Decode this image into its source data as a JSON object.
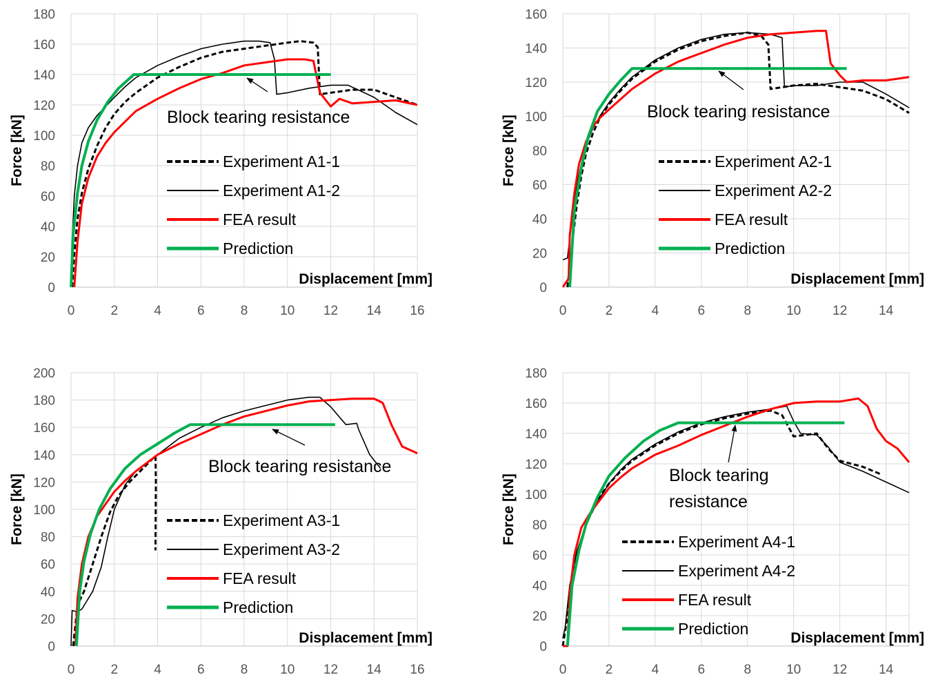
{
  "chart_data": [
    {
      "type": "line",
      "xlabel": "Displacement [mm]",
      "ylabel": "Force  [kN]",
      "xlim": [
        0,
        16
      ],
      "ylim": [
        0,
        180
      ],
      "xticks": [
        0,
        2,
        4,
        6,
        8,
        10,
        12,
        14,
        16
      ],
      "yticks": [
        0,
        20,
        40,
        60,
        80,
        100,
        120,
        140,
        160,
        180
      ],
      "annotation": "Block tearing resistance",
      "series": [
        {
          "name": "Experiment A1-1",
          "style": "dashed",
          "color": "#000000",
          "x": [
            0.05,
            0.15,
            0.3,
            0.5,
            0.8,
            1.2,
            1.6,
            2.0,
            2.5,
            3.0,
            4.0,
            5.0,
            6.0,
            7.0,
            8.0,
            9.0,
            10.0,
            10.6,
            11.2,
            11.4,
            11.5,
            12.0,
            13.0,
            14.0,
            15.0,
            16.0
          ],
          "y": [
            0,
            22,
            45,
            62,
            78,
            93,
            105,
            114,
            122,
            128,
            138,
            145,
            151,
            155,
            157,
            159,
            161,
            162,
            161,
            158,
            127,
            128,
            130,
            130,
            125,
            120
          ]
        },
        {
          "name": "Experiment A1-2",
          "style": "solid",
          "color": "#000000",
          "x": [
            0.0,
            0.05,
            0.15,
            0.3,
            0.5,
            0.8,
            1.2,
            1.6,
            2.0,
            2.5,
            3.0,
            4.0,
            5.0,
            6.0,
            7.0,
            8.0,
            8.7,
            9.2,
            9.4,
            9.5,
            10.0,
            11.0,
            12.0,
            12.8,
            14.0,
            15.0,
            16.0
          ],
          "y": [
            0,
            30,
            60,
            80,
            95,
            105,
            113,
            119,
            125,
            132,
            138,
            146,
            152,
            157,
            160,
            162,
            162,
            161,
            150,
            127,
            128,
            131,
            133,
            133,
            125,
            115,
            107
          ]
        },
        {
          "name": "FEA result",
          "style": "solid",
          "color": "#ff0000",
          "x": [
            0.15,
            0.3,
            0.5,
            0.8,
            1.2,
            1.6,
            2.0,
            2.5,
            3.0,
            4.0,
            5.0,
            6.0,
            7.0,
            8.0,
            9.0,
            10.0,
            10.8,
            11.2,
            11.5,
            12.0,
            12.4,
            13.0,
            14.0,
            15.0,
            16.0
          ],
          "y": [
            0,
            30,
            55,
            72,
            86,
            95,
            102,
            109,
            116,
            124,
            131,
            137,
            141,
            146,
            148,
            150,
            150,
            149,
            128,
            119,
            124,
            121,
            122,
            123,
            120
          ]
        },
        {
          "name": "Prediction",
          "style": "solid",
          "color": "#00b050",
          "x": [
            0.0,
            0.1,
            0.3,
            0.5,
            0.8,
            1.2,
            1.7,
            2.2,
            2.9,
            12.0
          ],
          "y": [
            0,
            35,
            62,
            80,
            96,
            110,
            122,
            131,
            140,
            140
          ]
        }
      ]
    },
    {
      "type": "line",
      "xlabel": "Displacement [mm]",
      "ylabel": "Force  [kN]",
      "xlim": [
        0,
        15
      ],
      "ylim": [
        0,
        160
      ],
      "xticks": [
        0,
        2,
        4,
        6,
        8,
        10,
        12,
        14
      ],
      "yticks": [
        0,
        20,
        40,
        60,
        80,
        100,
        120,
        140,
        160
      ],
      "annotation": "Block tearing resistance",
      "series": [
        {
          "name": "Experiment A2-1",
          "style": "dashed",
          "color": "#000000",
          "x": [
            0.2,
            0.4,
            0.6,
            0.8,
            1.0,
            1.3,
            1.6,
            2.0,
            2.5,
            3.0,
            4.0,
            5.0,
            6.0,
            7.0,
            8.0,
            8.6,
            8.9,
            9.0,
            10.0,
            11.0,
            12.0,
            13.0,
            14.0,
            15.0
          ],
          "y": [
            0,
            25,
            48,
            65,
            78,
            90,
            99,
            107,
            115,
            122,
            132,
            139,
            144,
            147,
            149,
            147,
            142,
            116,
            118,
            119,
            117,
            115,
            110,
            102
          ]
        },
        {
          "name": "Experiment A2-2",
          "style": "solid",
          "color": "#000000",
          "x": [
            0.0,
            0.2,
            0.4,
            0.6,
            0.8,
            1.0,
            1.3,
            1.6,
            2.0,
            2.5,
            3.0,
            4.0,
            5.0,
            6.0,
            7.0,
            8.0,
            9.0,
            9.5,
            9.6,
            10.0,
            11.0,
            12.0,
            13.0,
            14.0,
            15.0
          ],
          "y": [
            16,
            17,
            40,
            60,
            72,
            83,
            93,
            100,
            108,
            116,
            123,
            133,
            140,
            145,
            148,
            149,
            148,
            146,
            117,
            118,
            118,
            120,
            120,
            113,
            105
          ]
        },
        {
          "name": "FEA result",
          "style": "solid",
          "color": "#ff0000",
          "x": [
            0.0,
            0.25,
            0.3,
            0.5,
            0.7,
            1.0,
            1.3,
            1.6,
            2.0,
            2.5,
            3.0,
            4.0,
            5.0,
            6.0,
            7.0,
            8.0,
            9.0,
            10.0,
            11.0,
            11.4,
            11.6,
            12.0,
            12.3,
            13.0,
            14.0,
            15.0
          ],
          "y": [
            0,
            5,
            30,
            55,
            72,
            85,
            94,
            99,
            104,
            110,
            116,
            125,
            132,
            137,
            142,
            146,
            148,
            149,
            150,
            150,
            131,
            124,
            120,
            121,
            121,
            123
          ]
        },
        {
          "name": "Prediction",
          "style": "solid",
          "color": "#00b050",
          "x": [
            0.3,
            0.5,
            0.8,
            1.1,
            1.5,
            2.0,
            2.5,
            3.0,
            12.3
          ],
          "y": [
            0,
            45,
            70,
            88,
            103,
            113,
            121,
            128,
            128
          ]
        }
      ]
    },
    {
      "type": "line",
      "xlabel": "Displacement [mm]",
      "ylabel": "Force  [kN]",
      "xlim": [
        0,
        16
      ],
      "ylim": [
        0,
        200
      ],
      "xticks": [
        0,
        2,
        4,
        6,
        8,
        10,
        12,
        14,
        16
      ],
      "yticks": [
        0,
        20,
        40,
        60,
        80,
        100,
        120,
        140,
        160,
        180,
        200
      ],
      "annotation": "Block tearing resistance",
      "series": [
        {
          "name": "Experiment A3-1",
          "style": "dashed",
          "color": "#000000",
          "x": [
            0.1,
            0.3,
            0.6,
            1.0,
            1.4,
            1.8,
            2.2,
            2.7,
            3.2,
            3.7,
            3.9,
            3.92,
            3.9
          ],
          "y": [
            0,
            30,
            40,
            60,
            80,
            98,
            110,
            120,
            128,
            136,
            139,
            120,
            70
          ]
        },
        {
          "name": "Experiment A3-2",
          "style": "solid",
          "color": "#000000",
          "x": [
            0.0,
            0.05,
            0.3,
            0.5,
            1.0,
            1.4,
            1.7,
            2.0,
            2.5,
            3.0,
            4.0,
            5.0,
            6.0,
            7.0,
            8.0,
            9.0,
            10.0,
            11.0,
            11.5,
            12.0,
            12.7,
            13.2,
            13.3,
            13.8,
            14.3
          ],
          "y": [
            0,
            26,
            25,
            27,
            40,
            58,
            80,
            100,
            118,
            128,
            140,
            152,
            160,
            167,
            172,
            176,
            180,
            182,
            182,
            175,
            162,
            163,
            158,
            140,
            130
          ]
        },
        {
          "name": "FEA result",
          "style": "solid",
          "color": "#ff0000",
          "x": [
            0.2,
            0.3,
            0.5,
            0.8,
            1.2,
            1.6,
            2.0,
            2.5,
            3.0,
            4.0,
            5.0,
            6.0,
            7.0,
            8.0,
            9.0,
            10.0,
            11.0,
            12.0,
            13.0,
            14.0,
            14.4,
            14.8,
            15.3,
            16.0
          ],
          "y": [
            0,
            35,
            60,
            80,
            95,
            104,
            113,
            121,
            128,
            140,
            148,
            155,
            162,
            168,
            172,
            176,
            179,
            180,
            181,
            181,
            178,
            162,
            146,
            141
          ]
        },
        {
          "name": "Prediction",
          "style": "solid",
          "color": "#00b050",
          "x": [
            0.25,
            0.4,
            0.6,
            0.9,
            1.3,
            1.8,
            2.5,
            3.2,
            4.0,
            4.8,
            5.5,
            12.2
          ],
          "y": [
            0,
            40,
            62,
            82,
            100,
            115,
            130,
            140,
            148,
            156,
            162,
            162
          ]
        }
      ]
    },
    {
      "type": "line",
      "xlabel": "Displacement [mm]",
      "ylabel": "Force  [kN]",
      "xlim": [
        0,
        15
      ],
      "ylim": [
        0,
        180
      ],
      "xticks": [
        0,
        2,
        4,
        6,
        8,
        10,
        12,
        14
      ],
      "yticks": [
        0,
        20,
        40,
        60,
        80,
        100,
        120,
        140,
        160,
        180
      ],
      "annotation_lines": [
        "Block tearing",
        "resistance"
      ],
      "series": [
        {
          "name": "Experiment A4-1",
          "style": "dashed",
          "color": "#000000",
          "x": [
            0.0,
            0.2,
            0.4,
            0.7,
            1.0,
            1.5,
            2.0,
            2.5,
            3.0,
            4.0,
            5.0,
            6.0,
            7.0,
            8.0,
            9.0,
            9.5,
            10.0,
            11.0,
            11.5,
            12.0,
            13.0,
            13.8
          ],
          "y": [
            0,
            20,
            45,
            65,
            80,
            96,
            107,
            115,
            122,
            132,
            140,
            146,
            150,
            153,
            155,
            152,
            138,
            140,
            130,
            122,
            118,
            113
          ]
        },
        {
          "name": "Experiment A4-2",
          "style": "solid",
          "color": "#000000",
          "x": [
            0.0,
            0.1,
            0.3,
            0.6,
            1.0,
            1.5,
            2.0,
            2.5,
            3.0,
            4.0,
            5.0,
            6.0,
            7.0,
            8.0,
            9.0,
            9.7,
            10.0,
            10.3,
            11.0,
            11.5,
            12.0,
            13.0,
            14.0,
            15.0
          ],
          "y": [
            5,
            12,
            40,
            62,
            80,
            95,
            107,
            116,
            123,
            133,
            141,
            147,
            151,
            154,
            156,
            158,
            148,
            140,
            139,
            131,
            121,
            115,
            108,
            101
          ]
        },
        {
          "name": "FEA result",
          "style": "solid",
          "color": "#ff0000",
          "x": [
            0.0,
            0.2,
            0.3,
            0.5,
            0.8,
            1.2,
            1.6,
            2.0,
            2.5,
            3.0,
            4.0,
            5.0,
            6.0,
            7.0,
            8.0,
            9.0,
            10.0,
            11.0,
            12.0,
            12.8,
            13.2,
            13.6,
            14.0,
            14.5,
            15.0
          ],
          "y": [
            0,
            0,
            35,
            60,
            78,
            88,
            96,
            104,
            111,
            117,
            126,
            132,
            139,
            145,
            151,
            156,
            160,
            161,
            161,
            163,
            158,
            143,
            135,
            130,
            121
          ]
        },
        {
          "name": "Prediction",
          "style": "solid",
          "color": "#00b050",
          "x": [
            0.2,
            0.4,
            0.7,
            1.0,
            1.5,
            2.0,
            2.7,
            3.5,
            4.2,
            5.0,
            12.2
          ],
          "y": [
            0,
            40,
            63,
            80,
            98,
            112,
            124,
            135,
            142,
            147,
            147
          ]
        }
      ]
    }
  ]
}
